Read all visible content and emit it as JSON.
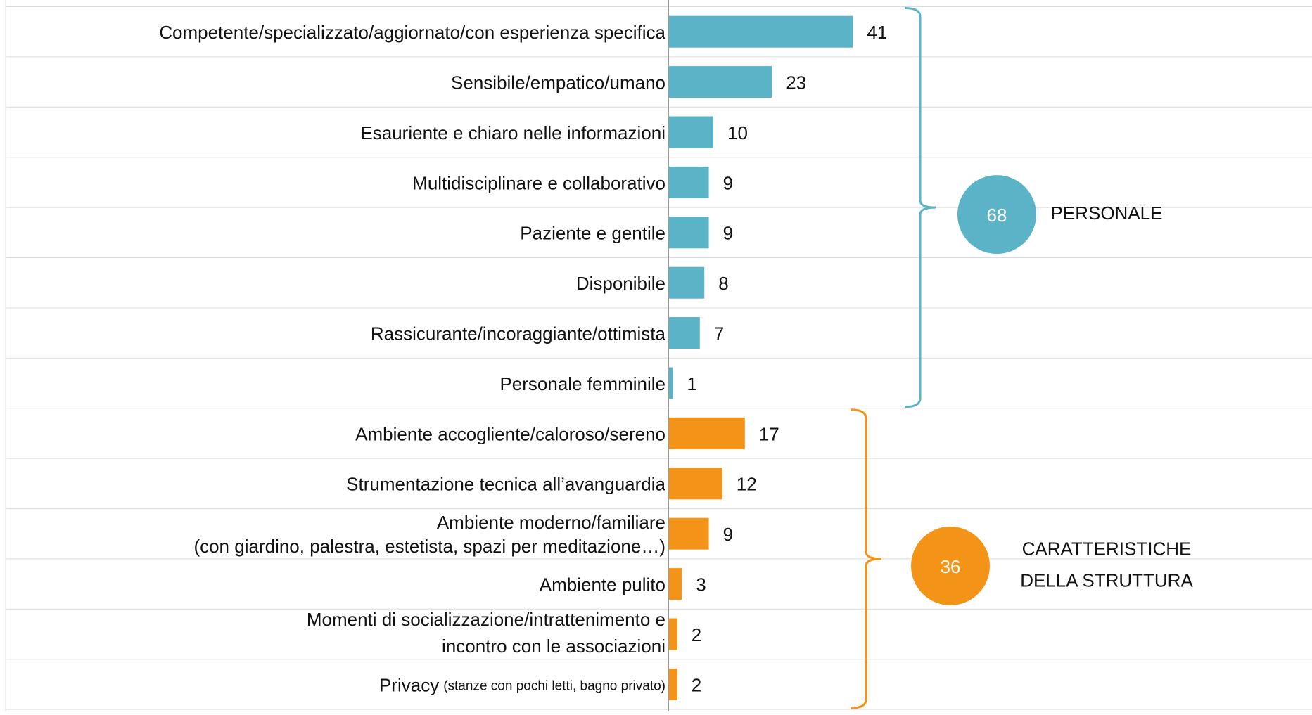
{
  "chart_data": {
    "type": "bar",
    "orientation": "horizontal",
    "xlim": [
      0,
      50
    ],
    "grid": true,
    "groups": [
      {
        "name": "PERSONALE",
        "total": 68,
        "color": "#5bb3c8",
        "categories": [
          "Competente/specializzato/aggiornato/con esperienza specifica",
          "Sensibile/empatico/umano",
          "Esauriente e chiaro nelle informazioni",
          "Multidisciplinare e collaborativo",
          "Paziente e gentile",
          "Disponibile",
          "Rassicurante/incoraggiante/ottimista",
          "Personale femminile"
        ],
        "category_notes": [
          null,
          null,
          null,
          null,
          null,
          null,
          null,
          null
        ],
        "values": [
          41,
          23,
          10,
          9,
          9,
          8,
          7,
          1
        ]
      },
      {
        "name": [
          "CARATTERISTICHE",
          "DELLA STRUTTURA"
        ],
        "total": 36,
        "color": "#f39317",
        "categories": [
          "Ambiente accogliente/caloroso/sereno",
          "Strumentazione tecnica all’avanguardia",
          "Ambiente moderno/familiare",
          "Ambiente pulito",
          [
            "Momenti di socializzazione/intrattenimento e",
            "incontro con le associazioni"
          ],
          "Privacy"
        ],
        "category_notes": [
          null,
          null,
          "(con giardino, palestra, estetista, spazi per meditazione…)",
          null,
          null,
          "(stanze con pochi letti, bagno privato)"
        ],
        "values": [
          17,
          12,
          9,
          3,
          2,
          2
        ]
      }
    ]
  }
}
